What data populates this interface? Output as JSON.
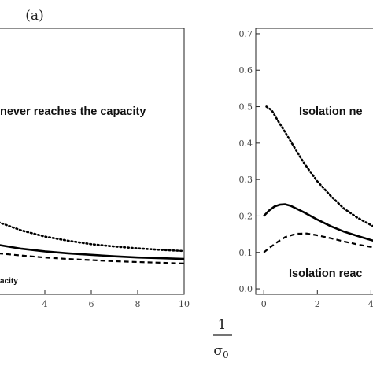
{
  "panel_tag": "(a)",
  "x_axis_label": {
    "numerator": "1",
    "denominator": "σ0"
  },
  "chart_data": [
    {
      "type": "line",
      "panel": "left",
      "xlim": [
        2,
        10
      ],
      "ylim": [
        0,
        0.7
      ],
      "x_ticks": [
        4,
        6,
        8,
        10
      ],
      "annotations": [
        "never reaches the capacity",
        "acity"
      ],
      "series": [
        {
          "style": "dotted",
          "x": [
            2,
            3,
            4,
            5,
            6,
            7,
            8,
            9,
            10
          ],
          "y": [
            0.19,
            0.168,
            0.152,
            0.141,
            0.132,
            0.126,
            0.121,
            0.117,
            0.114
          ]
        },
        {
          "style": "solid",
          "x": [
            2,
            3,
            4,
            5,
            6,
            7,
            8,
            9,
            10
          ],
          "y": [
            0.13,
            0.12,
            0.113,
            0.108,
            0.104,
            0.1,
            0.097,
            0.095,
            0.093
          ]
        },
        {
          "style": "dashed",
          "x": [
            2,
            3,
            4,
            5,
            6,
            7,
            8,
            9,
            10
          ],
          "y": [
            0.108,
            0.102,
            0.097,
            0.093,
            0.09,
            0.087,
            0.085,
            0.083,
            0.081
          ]
        }
      ]
    },
    {
      "type": "line",
      "panel": "right",
      "xlim": [
        -0.3,
        4.4
      ],
      "ylim": [
        -0.015,
        0.715
      ],
      "x_ticks": [
        0,
        2,
        4
      ],
      "y_ticks": [
        0.0,
        0.1,
        0.2,
        0.3,
        0.4,
        0.5,
        0.6,
        0.7
      ],
      "y_tick_labels": [
        "0.0",
        "0.1",
        "0.2",
        "0.3",
        "0.4",
        "0.5",
        "0.6",
        "0.7"
      ],
      "annotations": [
        "Isolation ne",
        "Isolation reac"
      ],
      "series": [
        {
          "style": "dotted",
          "x": [
            0.1,
            0.3,
            0.5,
            0.8,
            1.0,
            1.5,
            2.0,
            2.5,
            3.0,
            3.5,
            4.0,
            4.4
          ],
          "y": [
            0.5,
            0.49,
            0.465,
            0.43,
            0.405,
            0.345,
            0.295,
            0.255,
            0.22,
            0.195,
            0.175,
            0.16
          ]
        },
        {
          "style": "solid",
          "x": [
            0.0,
            0.2,
            0.4,
            0.6,
            0.8,
            1.0,
            1.5,
            2.0,
            2.5,
            3.0,
            3.5,
            4.0,
            4.4
          ],
          "y": [
            0.2,
            0.215,
            0.226,
            0.231,
            0.232,
            0.228,
            0.21,
            0.19,
            0.172,
            0.157,
            0.145,
            0.134,
            0.126
          ]
        },
        {
          "style": "dashed",
          "x": [
            0.0,
            0.2,
            0.5,
            0.8,
            1.2,
            1.6,
            2.0,
            2.5,
            3.0,
            3.5,
            4.0,
            4.4
          ],
          "y": [
            0.1,
            0.112,
            0.128,
            0.142,
            0.151,
            0.152,
            0.147,
            0.139,
            0.13,
            0.122,
            0.115,
            0.11
          ]
        }
      ]
    }
  ]
}
